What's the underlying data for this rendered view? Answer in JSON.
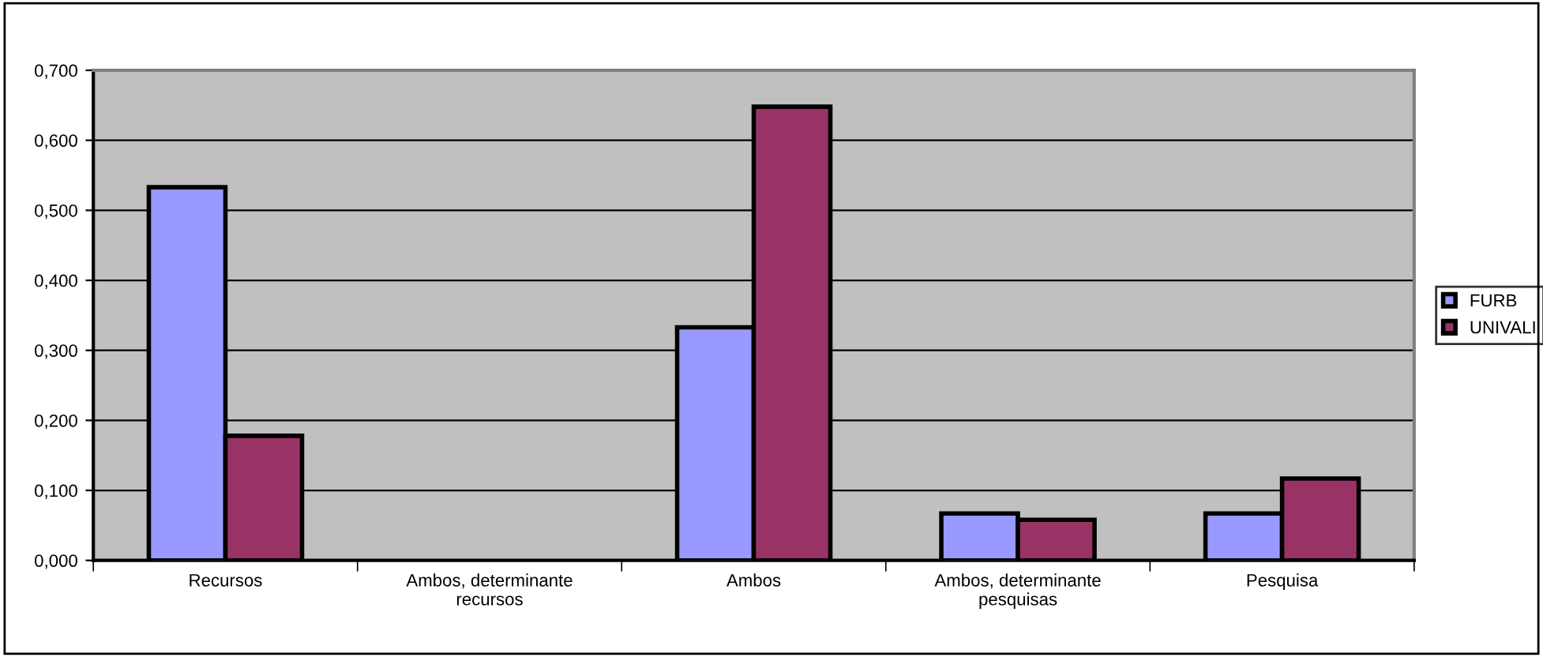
{
  "chart_data": {
    "type": "bar",
    "categories": [
      "Recursos",
      "Ambos, determinante\nrecursos",
      "Ambos",
      "Ambos, determinante\npesquisas",
      "Pesquisa"
    ],
    "series": [
      {
        "name": "FURB",
        "color": "#9999ff",
        "values": [
          0.533,
          0,
          0.333,
          0.067,
          0.067
        ]
      },
      {
        "name": "UNIVALI",
        "color": "#993366",
        "values": [
          0.178,
          0,
          0.648,
          0.058,
          0.117
        ]
      }
    ],
    "ylim": [
      0,
      0.7
    ],
    "yticks": [
      {
        "value": 0,
        "label": "0,000"
      },
      {
        "value": 0.1,
        "label": "0,100"
      },
      {
        "value": 0.2,
        "label": "0,200"
      },
      {
        "value": 0.3,
        "label": "0,300"
      },
      {
        "value": 0.4,
        "label": "0,400"
      },
      {
        "value": 0.5,
        "label": "0,500"
      },
      {
        "value": 0.6,
        "label": "0,600"
      },
      {
        "value": 0.7,
        "label": "0,700"
      }
    ],
    "grid": "y",
    "legend": "right"
  }
}
